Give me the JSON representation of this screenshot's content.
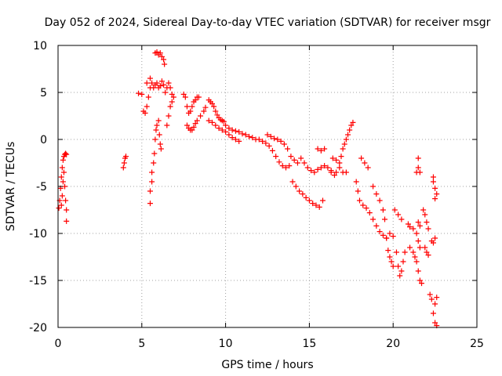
{
  "chart_data": {
    "type": "scatter",
    "title": "Day 052 of 2024, Sidereal Day-to-day VTEC variation (SDTVAR) for receiver msgr",
    "xlabel": "GPS time / hours",
    "ylabel": "SDTVAR / TECUs",
    "xlim": [
      0,
      25
    ],
    "ylim": [
      -20,
      10
    ],
    "xticks": [
      0,
      5,
      10,
      15,
      20,
      25
    ],
    "yticks": [
      -20,
      -15,
      -10,
      -5,
      0,
      5,
      10
    ],
    "grid": true,
    "marker": "+",
    "color": "#ff0000",
    "series": [
      {
        "name": "SDTVAR",
        "points": [
          [
            0.05,
            -7.3
          ],
          [
            0.1,
            -6.5
          ],
          [
            0.15,
            -5.2
          ],
          [
            0.2,
            -4.0
          ],
          [
            0.25,
            -3.0
          ],
          [
            0.3,
            -2.2
          ],
          [
            0.35,
            -1.8
          ],
          [
            0.4,
            -1.6
          ],
          [
            0.45,
            -1.5
          ],
          [
            0.5,
            -1.6
          ],
          [
            0.35,
            -3.5
          ],
          [
            0.4,
            -5.0
          ],
          [
            0.45,
            -6.5
          ],
          [
            0.5,
            -7.5
          ],
          [
            0.5,
            -8.7
          ],
          [
            0.3,
            -4.5
          ],
          [
            0.25,
            -6.0
          ],
          [
            0.2,
            -7.0
          ],
          [
            3.9,
            -3.0
          ],
          [
            3.95,
            -2.5
          ],
          [
            4.0,
            -2.0
          ],
          [
            4.05,
            -1.8
          ],
          [
            4.8,
            4.9
          ],
          [
            5.0,
            4.8
          ],
          [
            5.1,
            3.0
          ],
          [
            5.2,
            2.8
          ],
          [
            5.3,
            3.5
          ],
          [
            5.4,
            4.5
          ],
          [
            5.5,
            5.5
          ],
          [
            5.3,
            6.0
          ],
          [
            5.5,
            6.5
          ],
          [
            5.6,
            6.0
          ],
          [
            5.7,
            5.5
          ],
          [
            5.8,
            5.8
          ],
          [
            5.9,
            6.0
          ],
          [
            6.0,
            5.5
          ],
          [
            6.1,
            5.7
          ],
          [
            6.2,
            6.2
          ],
          [
            6.3,
            5.8
          ],
          [
            6.4,
            5.0
          ],
          [
            6.5,
            5.5
          ],
          [
            6.6,
            6.0
          ],
          [
            6.7,
            5.5
          ],
          [
            6.8,
            4.8
          ],
          [
            5.8,
            9.2
          ],
          [
            5.9,
            9.3
          ],
          [
            6.0,
            9.0
          ],
          [
            6.1,
            9.2
          ],
          [
            6.2,
            8.8
          ],
          [
            6.3,
            8.5
          ],
          [
            6.35,
            8.0
          ],
          [
            5.5,
            -6.8
          ],
          [
            5.5,
            -5.5
          ],
          [
            5.6,
            -4.5
          ],
          [
            5.6,
            -3.5
          ],
          [
            5.7,
            -2.5
          ],
          [
            5.75,
            -1.5
          ],
          [
            5.8,
            0.0
          ],
          [
            5.85,
            1.0
          ],
          [
            5.9,
            1.5
          ],
          [
            6.0,
            2.0
          ],
          [
            6.05,
            0.5
          ],
          [
            6.1,
            -0.5
          ],
          [
            6.15,
            -1.0
          ],
          [
            6.5,
            1.5
          ],
          [
            6.6,
            2.5
          ],
          [
            6.7,
            3.5
          ],
          [
            6.8,
            4.0
          ],
          [
            6.9,
            4.5
          ],
          [
            7.5,
            4.8
          ],
          [
            7.6,
            4.5
          ],
          [
            7.7,
            3.5
          ],
          [
            7.8,
            2.8
          ],
          [
            7.9,
            3.0
          ],
          [
            8.0,
            3.5
          ],
          [
            8.1,
            4.0
          ],
          [
            8.2,
            4.2
          ],
          [
            8.3,
            4.5
          ],
          [
            8.4,
            4.5
          ],
          [
            7.7,
            1.5
          ],
          [
            7.8,
            1.2
          ],
          [
            7.9,
            1.0
          ],
          [
            8.0,
            1.0
          ],
          [
            8.1,
            1.3
          ],
          [
            8.2,
            1.7
          ],
          [
            8.3,
            2.0
          ],
          [
            8.5,
            2.5
          ],
          [
            8.7,
            3.0
          ],
          [
            8.8,
            3.4
          ],
          [
            9.0,
            4.2
          ],
          [
            9.1,
            4.0
          ],
          [
            9.2,
            3.8
          ],
          [
            9.3,
            3.5
          ],
          [
            9.4,
            3.0
          ],
          [
            9.5,
            2.6
          ],
          [
            9.6,
            2.3
          ],
          [
            9.7,
            2.1
          ],
          [
            9.8,
            2.0
          ],
          [
            9.9,
            1.9
          ],
          [
            9.0,
            2.0
          ],
          [
            9.2,
            1.8
          ],
          [
            9.4,
            1.5
          ],
          [
            9.6,
            1.2
          ],
          [
            9.8,
            1.0
          ],
          [
            10.0,
            0.8
          ],
          [
            10.2,
            0.5
          ],
          [
            10.4,
            0.2
          ],
          [
            10.6,
            0.0
          ],
          [
            10.8,
            -0.2
          ],
          [
            10.0,
            1.5
          ],
          [
            10.2,
            1.2
          ],
          [
            10.4,
            1.0
          ],
          [
            10.6,
            0.9
          ],
          [
            10.8,
            0.8
          ],
          [
            11.0,
            0.6
          ],
          [
            11.2,
            0.5
          ],
          [
            11.4,
            0.3
          ],
          [
            11.6,
            0.2
          ],
          [
            11.8,
            0.0
          ],
          [
            12.0,
            0.0
          ],
          [
            12.2,
            -0.2
          ],
          [
            12.4,
            -0.4
          ],
          [
            12.6,
            -0.7
          ],
          [
            12.8,
            -1.2
          ],
          [
            13.0,
            -1.8
          ],
          [
            13.2,
            -2.4
          ],
          [
            13.4,
            -2.8
          ],
          [
            13.6,
            -3.0
          ],
          [
            13.8,
            -2.8
          ],
          [
            12.5,
            0.5
          ],
          [
            12.7,
            0.3
          ],
          [
            12.9,
            0.1
          ],
          [
            13.1,
            0.0
          ],
          [
            13.3,
            -0.2
          ],
          [
            13.5,
            -0.5
          ],
          [
            13.7,
            -1.0
          ],
          [
            13.9,
            -1.8
          ],
          [
            14.1,
            -2.2
          ],
          [
            14.3,
            -2.5
          ],
          [
            14.0,
            -4.5
          ],
          [
            14.2,
            -5.0
          ],
          [
            14.4,
            -5.5
          ],
          [
            14.6,
            -5.8
          ],
          [
            14.8,
            -6.2
          ],
          [
            15.0,
            -6.5
          ],
          [
            15.2,
            -6.8
          ],
          [
            15.4,
            -7.0
          ],
          [
            15.6,
            -7.2
          ],
          [
            15.8,
            -6.5
          ],
          [
            14.5,
            -2.0
          ],
          [
            14.7,
            -2.5
          ],
          [
            14.9,
            -3.0
          ],
          [
            15.1,
            -3.3
          ],
          [
            15.3,
            -3.5
          ],
          [
            15.5,
            -3.2
          ],
          [
            15.7,
            -3.0
          ],
          [
            15.9,
            -2.8
          ],
          [
            16.1,
            -3.0
          ],
          [
            16.3,
            -3.3
          ],
          [
            15.5,
            -1.0
          ],
          [
            15.7,
            -1.2
          ],
          [
            15.9,
            -1.0
          ],
          [
            16.3,
            -3.5
          ],
          [
            16.5,
            -3.8
          ],
          [
            16.6,
            -3.5
          ],
          [
            16.8,
            -2.5
          ],
          [
            16.9,
            -1.8
          ],
          [
            17.0,
            -1.0
          ],
          [
            17.1,
            -0.5
          ],
          [
            17.2,
            0.0
          ],
          [
            17.3,
            0.5
          ],
          [
            17.4,
            1.0
          ],
          [
            17.5,
            1.5
          ],
          [
            17.6,
            1.8
          ],
          [
            16.4,
            -2.0
          ],
          [
            16.6,
            -2.2
          ],
          [
            16.8,
            -3.0
          ],
          [
            17.0,
            -3.5
          ],
          [
            17.2,
            -3.5
          ],
          [
            17.8,
            -4.5
          ],
          [
            17.9,
            -5.5
          ],
          [
            18.0,
            -6.5
          ],
          [
            18.1,
            -2.0
          ],
          [
            18.3,
            -2.5
          ],
          [
            18.5,
            -3.0
          ],
          [
            18.2,
            -7.0
          ],
          [
            18.4,
            -7.3
          ],
          [
            18.6,
            -7.8
          ],
          [
            18.8,
            -8.5
          ],
          [
            19.0,
            -9.2
          ],
          [
            19.2,
            -9.8
          ],
          [
            19.4,
            -10.2
          ],
          [
            19.6,
            -10.5
          ],
          [
            19.8,
            -10.0
          ],
          [
            20.0,
            -10.3
          ],
          [
            18.8,
            -5.0
          ],
          [
            19.0,
            -5.8
          ],
          [
            19.2,
            -6.5
          ],
          [
            19.4,
            -7.5
          ],
          [
            19.5,
            -8.5
          ],
          [
            19.6,
            -10.5
          ],
          [
            19.7,
            -11.8
          ],
          [
            19.8,
            -12.5
          ],
          [
            19.9,
            -13.0
          ],
          [
            20.0,
            -13.5
          ],
          [
            20.1,
            -7.5
          ],
          [
            20.3,
            -8.0
          ],
          [
            20.5,
            -8.5
          ],
          [
            20.2,
            -12.0
          ],
          [
            20.3,
            -13.5
          ],
          [
            20.4,
            -14.5
          ],
          [
            20.5,
            -14.0
          ],
          [
            20.6,
            -13.0
          ],
          [
            20.7,
            -12.0
          ],
          [
            20.9,
            -9.0
          ],
          [
            21.0,
            -9.3
          ],
          [
            21.2,
            -9.5
          ],
          [
            21.4,
            -10.0
          ],
          [
            21.5,
            -10.8
          ],
          [
            21.6,
            -11.5
          ],
          [
            21.0,
            -11.5
          ],
          [
            21.2,
            -12.0
          ],
          [
            21.3,
            -12.5
          ],
          [
            21.4,
            -13.0
          ],
          [
            21.5,
            -14.0
          ],
          [
            21.6,
            -15.0
          ],
          [
            21.7,
            -15.3
          ],
          [
            21.4,
            -3.5
          ],
          [
            21.5,
            -3.0
          ],
          [
            21.5,
            -2.0
          ],
          [
            21.6,
            -3.5
          ],
          [
            21.5,
            -8.8
          ],
          [
            21.6,
            -9.2
          ],
          [
            21.8,
            -7.5
          ],
          [
            21.9,
            -8.0
          ],
          [
            22.0,
            -8.8
          ],
          [
            22.1,
            -9.5
          ],
          [
            21.9,
            -11.5
          ],
          [
            22.0,
            -12.0
          ],
          [
            22.1,
            -12.3
          ],
          [
            22.2,
            -16.5
          ],
          [
            22.3,
            -17.0
          ],
          [
            22.4,
            -18.5
          ],
          [
            22.5,
            -19.5
          ],
          [
            22.5,
            -17.5
          ],
          [
            22.6,
            -16.8
          ],
          [
            22.6,
            -19.8
          ],
          [
            22.3,
            -10.8
          ],
          [
            22.4,
            -11.0
          ],
          [
            22.5,
            -10.5
          ],
          [
            22.4,
            -4.5
          ],
          [
            22.5,
            -5.2
          ],
          [
            22.5,
            -6.3
          ],
          [
            22.6,
            -5.8
          ],
          [
            22.4,
            -4.0
          ]
        ]
      }
    ]
  }
}
